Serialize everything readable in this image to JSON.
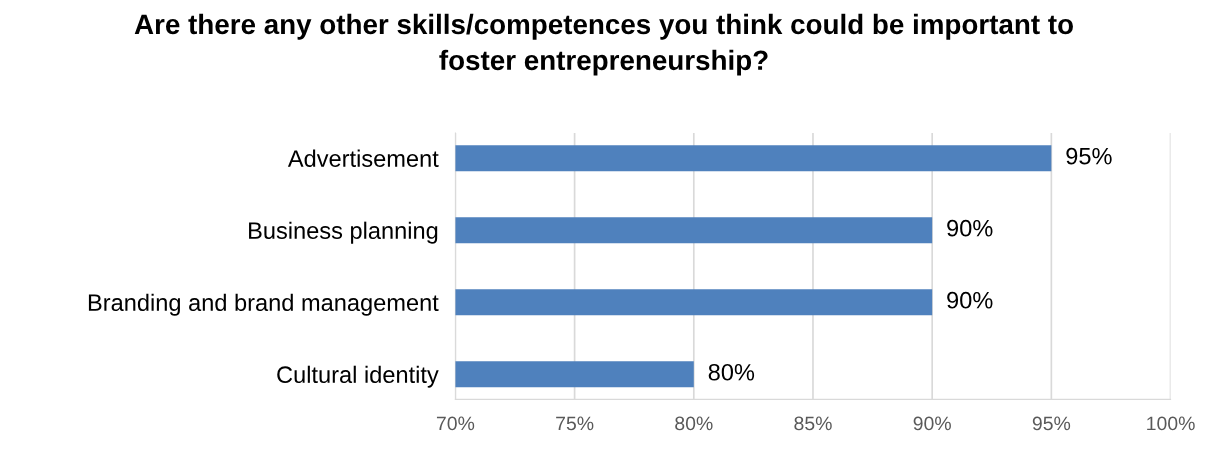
{
  "chart_data": {
    "type": "bar",
    "orientation": "horizontal",
    "title": "Are there any other skills/competences you think could be important to\nfoster entrepreneurship?",
    "categories": [
      "Advertisement",
      "Business planning",
      "Branding and brand management",
      "Cultural identity"
    ],
    "values": [
      95,
      90,
      90,
      80
    ],
    "color": "#4f81bd",
    "value_labels": [
      "95%",
      "90%",
      "90%",
      "80%"
    ],
    "xlim": [
      70,
      100
    ],
    "xticks": [
      {
        "value": 70,
        "label": "70%"
      },
      {
        "value": 75,
        "label": "75%"
      },
      {
        "value": 80,
        "label": "80%"
      },
      {
        "value": 85,
        "label": "85%"
      },
      {
        "value": 90,
        "label": "90%"
      },
      {
        "value": 95,
        "label": "95%"
      },
      {
        "value": 100,
        "label": "100%"
      }
    ],
    "grid": "x",
    "legend": false
  }
}
